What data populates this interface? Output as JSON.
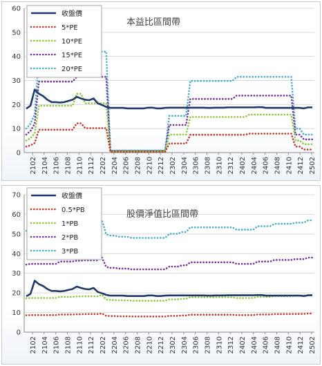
{
  "chart_data": [
    {
      "type": "line",
      "title": "本益比區間帶",
      "ylim": [
        0,
        60
      ],
      "yticks": [
        "0",
        "10",
        "20",
        "30",
        "40",
        "50",
        "60"
      ],
      "xticks": [
        "2102",
        "2104",
        "2106",
        "2108",
        "2110",
        "2112",
        "2202",
        "2204",
        "2206",
        "2208",
        "2210",
        "2212",
        "2302",
        "2304",
        "2306",
        "2308",
        "2310",
        "2312",
        "2402",
        "2404",
        "2406",
        "2408",
        "2410",
        "2412",
        "2502"
      ],
      "legend_position": "top-left",
      "series": [
        {
          "name": "收盤價",
          "color": "#1f3864",
          "style": "solid",
          "values": [
            18.3,
            19.5,
            26.2,
            24.5,
            23.5,
            22,
            21,
            21,
            20.8,
            21,
            21.5,
            22,
            23.2,
            22.5,
            22,
            21.8,
            22.5,
            20.5,
            19.8,
            19,
            18.6,
            18.6,
            18.6,
            18.6,
            18.4,
            18.4,
            18.4,
            18.4,
            18.4,
            18.7,
            18.7,
            18.4,
            18.4,
            18.6,
            18.7,
            18.7,
            18.7,
            18.7,
            18.7,
            18.7,
            18.7,
            18.7,
            18.7,
            18.6,
            18.6,
            18.7,
            18.7,
            18.7,
            18.8,
            18.8,
            18.8,
            18.8,
            18.8,
            18.8,
            18.8,
            18.9,
            18.9,
            18.6,
            18.6,
            18.6,
            18.6,
            18.6,
            18.6,
            18.6,
            18.6,
            18.6,
            18.4,
            18.8,
            18.8
          ]
        },
        {
          "name": "5*PE",
          "color": "#c0392b",
          "style": "dotted",
          "values": [
            2.5,
            3,
            4,
            9.5,
            9.5,
            9.5,
            9.5,
            9.5,
            9.5,
            9.5,
            9.5,
            9.5,
            12.2,
            12.2,
            10.2,
            10.2,
            10.2,
            10.2,
            10.2,
            10.2,
            0.3,
            0.3,
            0.3,
            0.3,
            0.3,
            0.3,
            0.3,
            0.3,
            0.3,
            0.3,
            0.3,
            0.3,
            0.3,
            0.3,
            3.8,
            3.8,
            3.8,
            3.8,
            3.8,
            7.4,
            7.4,
            7.4,
            7.4,
            7.4,
            7.4,
            7.4,
            7.4,
            7.4,
            7.4,
            7.4,
            7.4,
            7.4,
            7.4,
            7.9,
            7.9,
            7.9,
            7.9,
            7.9,
            7.9,
            7.9,
            7.9,
            7.9,
            7.9,
            7.9,
            2.5,
            2.5,
            1.3,
            1.3,
            1.3
          ]
        },
        {
          "name": "10*PE",
          "color": "#8dc63f",
          "style": "dotted",
          "values": [
            5,
            6,
            8,
            19.5,
            19.5,
            19.5,
            19.5,
            19.5,
            19.5,
            19.5,
            19.5,
            19.5,
            24.5,
            24.5,
            20.5,
            20.5,
            20.5,
            20.5,
            20.5,
            20.5,
            0.5,
            0.5,
            0.5,
            0.5,
            0.5,
            0.5,
            0.5,
            0.5,
            0.5,
            0.5,
            0.5,
            0.5,
            0.5,
            0.5,
            7.5,
            7.5,
            7.5,
            7.5,
            7.5,
            14.8,
            14.8,
            14.8,
            14.8,
            14.8,
            14.8,
            14.8,
            14.8,
            14.8,
            14.8,
            14.8,
            14.8,
            14.8,
            14.8,
            15.8,
            15.8,
            15.8,
            15.8,
            15.8,
            15.8,
            15.8,
            15.8,
            15.8,
            15.8,
            15.8,
            5,
            5,
            3.5,
            3.5,
            3.5
          ]
        },
        {
          "name": "15*PE",
          "color": "#7030a0",
          "style": "dotted",
          "values": [
            7.5,
            9,
            12,
            29.5,
            29.5,
            29.5,
            29.5,
            29.5,
            29.5,
            29.5,
            29.5,
            29.5,
            31.5,
            31.5,
            31.5,
            31.5,
            31.5,
            31.5,
            31.5,
            31.5,
            0.7,
            0.7,
            0.7,
            0.7,
            0.7,
            0.7,
            0.7,
            0.7,
            0.7,
            0.7,
            0.7,
            0.7,
            0.7,
            0.7,
            11.5,
            11.5,
            11.5,
            11.5,
            11.5,
            22.3,
            22.3,
            22.3,
            22.3,
            22.3,
            22.3,
            22.3,
            22.3,
            22.3,
            22.3,
            22.3,
            23.7,
            23.7,
            23.7,
            23.7,
            23.7,
            23.7,
            23.7,
            23.7,
            23.7,
            23.7,
            23.7,
            23.7,
            23.7,
            23.7,
            7.5,
            7.5,
            5.5,
            5.5,
            5.5
          ]
        },
        {
          "name": "20*PE",
          "color": "#4bacc6",
          "style": "dotted",
          "values": [
            10,
            12,
            16,
            39.5,
            39.5,
            39.5,
            39.5,
            39.5,
            39.5,
            39.5,
            39.5,
            39.5,
            42,
            42,
            42,
            42,
            42,
            42,
            42,
            42,
            0.9,
            0.9,
            0.9,
            0.9,
            0.9,
            0.9,
            0.9,
            0.9,
            0.9,
            0.9,
            0.9,
            0.9,
            0.9,
            0.9,
            15.3,
            15.3,
            15.3,
            15.3,
            15.3,
            29.8,
            29.8,
            29.8,
            29.8,
            29.8,
            29.8,
            29.8,
            29.8,
            29.8,
            29.8,
            29.8,
            31.5,
            31.5,
            31.5,
            31.5,
            31.5,
            31.5,
            31.5,
            31.5,
            31.5,
            31.5,
            31.5,
            31.5,
            31.5,
            31.5,
            10,
            10,
            7.5,
            7.5,
            7.5
          ]
        }
      ]
    },
    {
      "type": "line",
      "title": "股價淨值比區間帶",
      "ylim": [
        0,
        70
      ],
      "yticks": [
        "0",
        "10",
        "20",
        "30",
        "40",
        "50",
        "60",
        "70"
      ],
      "xticks": [
        "2102",
        "2104",
        "2106",
        "2108",
        "2110",
        "2112",
        "2202",
        "2204",
        "2206",
        "2208",
        "2210",
        "2212",
        "2302",
        "2304",
        "2306",
        "2308",
        "2310",
        "2312",
        "2402",
        "2404",
        "2406",
        "2408",
        "2410",
        "2412",
        "2502"
      ],
      "legend_position": "top-left",
      "series": [
        {
          "name": "收盤價",
          "color": "#1f3864",
          "style": "solid",
          "values": [
            18.3,
            19.5,
            26.2,
            24.5,
            23.5,
            22,
            21,
            21,
            20.8,
            21,
            21.5,
            22,
            23.2,
            22.5,
            22,
            21.8,
            22.5,
            20.5,
            19.8,
            19,
            18.6,
            18.6,
            18.6,
            18.6,
            18.4,
            18.4,
            18.4,
            18.4,
            18.4,
            18.7,
            18.7,
            18.4,
            18.4,
            18.6,
            18.7,
            18.7,
            18.7,
            18.7,
            18.7,
            18.7,
            18.7,
            18.7,
            18.7,
            18.6,
            18.6,
            18.7,
            18.7,
            18.7,
            18.8,
            18.8,
            18.8,
            18.8,
            18.8,
            18.8,
            18.8,
            18.9,
            18.9,
            18.6,
            18.6,
            18.6,
            18.6,
            18.6,
            18.6,
            18.6,
            18.6,
            18.6,
            18.4,
            18.8,
            18.8
          ]
        },
        {
          "name": "0.5*PB",
          "color": "#c0392b",
          "style": "dotted",
          "values": [
            8.6,
            8.7,
            8.7,
            8.7,
            8.7,
            8.7,
            8.7,
            8.7,
            9,
            9,
            9,
            9,
            9.1,
            9.1,
            9.2,
            9.2,
            9.2,
            9.2,
            9.5,
            8.3,
            8.2,
            8.2,
            8.1,
            8.1,
            8.1,
            8,
            8,
            8,
            8,
            8,
            8,
            8,
            8,
            8,
            8.3,
            8.3,
            8.3,
            8.5,
            8.5,
            8.9,
            8.9,
            8.9,
            8.9,
            8.9,
            8.9,
            8.9,
            8.9,
            8.9,
            8.9,
            8.9,
            8.7,
            8.7,
            8.7,
            8.7,
            8.7,
            9,
            9,
            9,
            9,
            9.2,
            9.2,
            9.2,
            9.2,
            9.2,
            9.3,
            9.3,
            9.3,
            9.5,
            9.5
          ]
        },
        {
          "name": "1*PB",
          "color": "#8dc63f",
          "style": "dotted",
          "values": [
            17.2,
            17.4,
            17.4,
            17.4,
            17.4,
            17.4,
            17.4,
            17.4,
            18,
            18,
            18,
            18,
            18.2,
            18.2,
            18.3,
            18.3,
            18.3,
            18.3,
            19,
            16.6,
            16.4,
            16.4,
            16.2,
            16.2,
            16.2,
            16,
            16,
            16,
            16,
            16,
            16,
            16,
            16,
            16,
            16.7,
            16.7,
            16.7,
            17,
            17,
            17.8,
            17.8,
            17.8,
            17.8,
            17.8,
            17.8,
            17.8,
            17.8,
            17.8,
            17.8,
            17.8,
            17.4,
            17.4,
            17.4,
            17.4,
            17.4,
            18,
            18,
            18,
            18,
            18.4,
            18.4,
            18.4,
            18.4,
            18.4,
            18.6,
            18.6,
            18.6,
            19,
            19
          ]
        },
        {
          "name": "2*PB",
          "color": "#7030a0",
          "style": "dotted",
          "values": [
            34.4,
            34.8,
            34.8,
            34.8,
            34.8,
            34.8,
            34.8,
            34.8,
            36,
            36,
            36,
            36,
            36.4,
            36.4,
            36.6,
            36.6,
            36.6,
            36.6,
            38,
            33.2,
            32.8,
            32.8,
            32.4,
            32.4,
            32.4,
            32,
            32,
            32,
            32,
            32,
            32,
            32,
            32,
            32,
            33.4,
            33.4,
            33.4,
            34,
            34,
            35.6,
            35.6,
            35.6,
            35.6,
            35.6,
            35.6,
            35.6,
            35.6,
            35.6,
            35.6,
            35.6,
            34.8,
            34.8,
            34.8,
            34.8,
            34.8,
            36,
            36,
            36,
            36,
            36.8,
            36.8,
            36.8,
            36.8,
            36.8,
            37.2,
            37.2,
            37.2,
            38,
            38
          ]
        },
        {
          "name": "3*PB",
          "color": "#4bacc6",
          "style": "dotted",
          "values": [
            51.6,
            52.2,
            52.2,
            52.2,
            52.2,
            52.2,
            52.2,
            52.2,
            54,
            54,
            54,
            54,
            54.6,
            54.6,
            54.9,
            54.9,
            54.9,
            54.9,
            57,
            49.8,
            49.2,
            49.2,
            48.6,
            48.6,
            48.6,
            48,
            48,
            48,
            48,
            48,
            48,
            48,
            48,
            48,
            50.1,
            50.1,
            50.1,
            51,
            51,
            53.4,
            53.4,
            53.4,
            53.4,
            53.4,
            53.4,
            53.4,
            53.4,
            53.4,
            53.4,
            53.4,
            52.2,
            52.2,
            52.2,
            52.2,
            52.2,
            54,
            54,
            54,
            54,
            55.2,
            55.2,
            55.2,
            55.2,
            55.2,
            55.8,
            55.8,
            55.8,
            57,
            57
          ]
        }
      ]
    }
  ]
}
